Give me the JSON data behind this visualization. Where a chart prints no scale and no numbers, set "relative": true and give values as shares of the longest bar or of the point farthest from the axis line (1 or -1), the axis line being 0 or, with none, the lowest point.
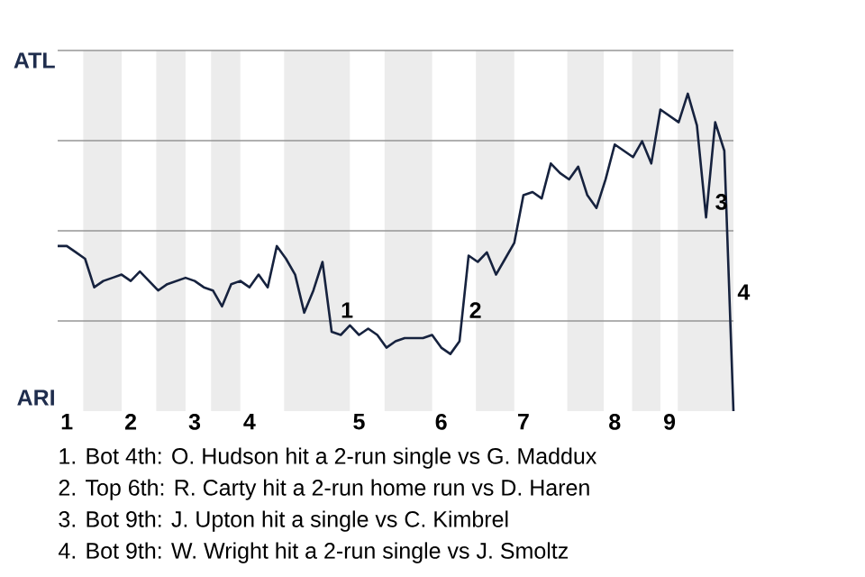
{
  "chart_data": {
    "type": "line",
    "relative": true,
    "categories": [
      null,
      "1",
      null,
      null,
      null,
      null,
      null,
      null,
      "2",
      null,
      null,
      null,
      null,
      null,
      null,
      "3",
      null,
      null,
      null,
      null,
      null,
      "4",
      null,
      null,
      null,
      null,
      null,
      null,
      null,
      null,
      null,
      null,
      null,
      "5",
      null,
      null,
      null,
      null,
      null,
      null,
      null,
      null,
      "6",
      null,
      null,
      null,
      null,
      null,
      null,
      null,
      null,
      "7",
      null,
      null,
      null,
      null,
      null,
      null,
      null,
      null,
      null,
      "8",
      null,
      null,
      null,
      null,
      null,
      "9",
      null,
      null,
      null,
      null,
      null,
      null,
      null
    ],
    "values": [
      0.52,
      0.52,
      0.5,
      0.48,
      0.39,
      0.41,
      0.42,
      0.43,
      0.41,
      0.44,
      0.41,
      0.38,
      0.4,
      0.41,
      0.42,
      0.41,
      0.39,
      0.38,
      0.33,
      0.4,
      0.41,
      0.39,
      0.43,
      0.39,
      0.52,
      0.48,
      0.43,
      0.31,
      0.38,
      0.47,
      0.25,
      0.24,
      0.27,
      0.24,
      0.26,
      0.24,
      0.2,
      0.22,
      0.23,
      0.23,
      0.23,
      0.24,
      0.2,
      0.18,
      0.22,
      0.49,
      0.47,
      0.5,
      0.43,
      0.48,
      0.53,
      0.68,
      0.69,
      0.67,
      0.78,
      0.75,
      0.73,
      0.77,
      0.68,
      0.64,
      0.73,
      0.84,
      0.82,
      0.8,
      0.85,
      0.78,
      0.95,
      0.93,
      0.91,
      1,
      0.9,
      0.61,
      0.91,
      0.82,
      0
    ],
    "color": "#16223e",
    "grid": "y",
    "annotations": [
      "ATL",
      "ARI",
      "1",
      "2",
      "3",
      "4",
      "1. Bot 4th: O. Hudson hit a 2-run single vs G. Maddux",
      "2. Top 6th: R. Carty hit a 2-run home run vs D. Haren",
      "3. Bot 9th: J. Upton hit a single vs C. Kimbrel",
      "4. Bot 9th: W. Wright hit a 2-run single vs J. Smoltz"
    ]
  }
}
